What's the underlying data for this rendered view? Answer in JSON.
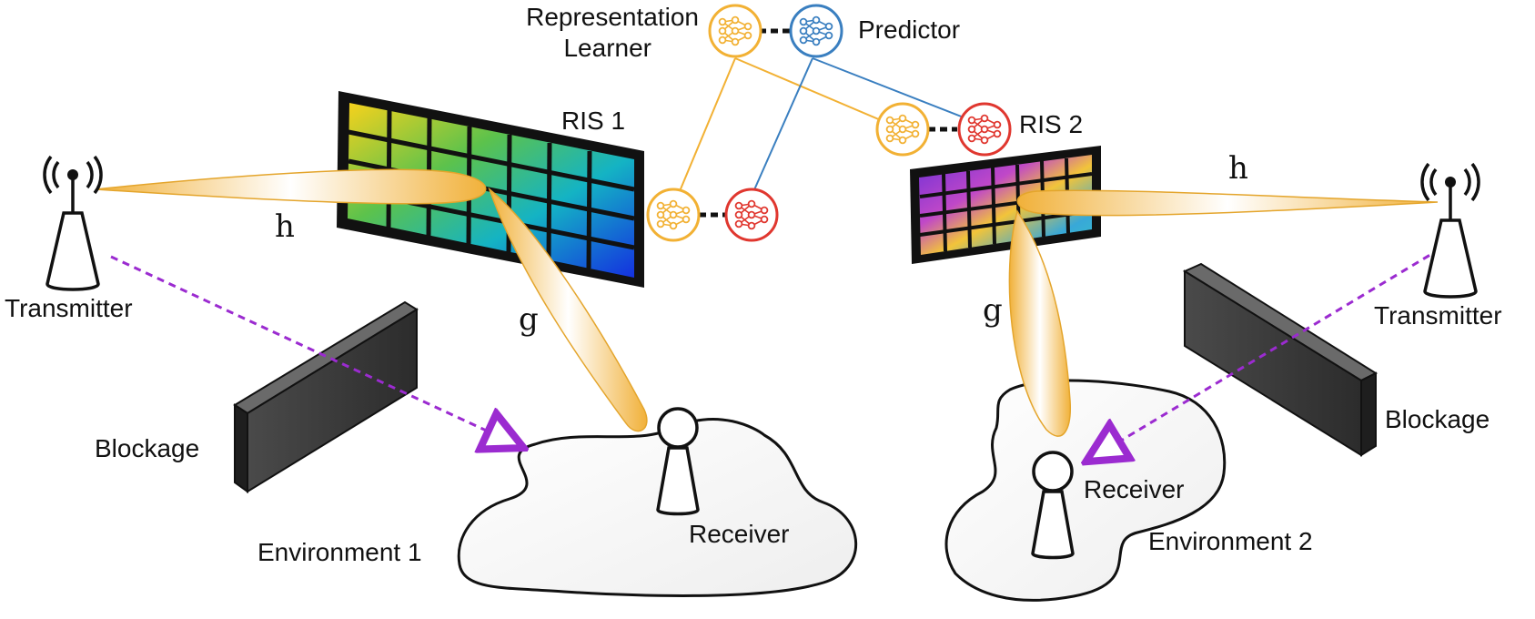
{
  "labels": {
    "representation_learner": [
      "Representation",
      "Learner"
    ],
    "predictor": "Predictor",
    "ris1": "RIS 1",
    "ris2": "RIS 2",
    "transmitter_left": "Transmitter",
    "transmitter_right": "Transmitter",
    "blockage_left": "Blockage",
    "blockage_right": "Blockage",
    "receiver_left": "Receiver",
    "receiver_right": "Receiver",
    "environment1": "Environment 1",
    "environment2": "Environment 2",
    "h_left": "h",
    "g_left": "g",
    "h_right": "h",
    "g_right": "g"
  },
  "colors": {
    "representation_learner": "#f2b134",
    "predictor_blue": "#3a7fc0",
    "predictor_red": "#e0372f",
    "beam": "#f3b53a",
    "blocked_path": "#9b2bd0",
    "blockage": "#3a3a3a"
  },
  "icons": {
    "representation_learner": "neural-network-icon",
    "predictor": "neural-network-icon",
    "transmitter": "antenna-tower-icon",
    "receiver": "receiver-icon"
  }
}
